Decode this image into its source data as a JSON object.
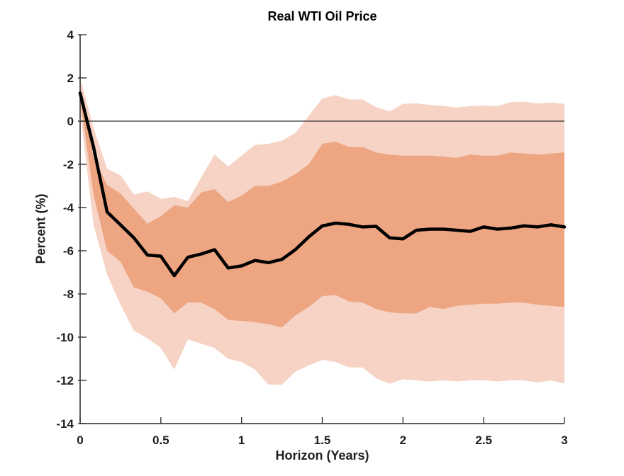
{
  "chart_data": {
    "type": "line",
    "title": "Real WTI Oil Price",
    "xlabel": "Horizon (Years)",
    "ylabel": "Percent (%)",
    "xlim": [
      0,
      3
    ],
    "ylim": [
      -14,
      4
    ],
    "grid": false,
    "legend": null,
    "xticks": [
      0,
      0.5,
      1,
      1.5,
      2,
      2.5,
      3
    ],
    "xtick_labels": [
      "0",
      "0.5",
      "1",
      "1.5",
      "2",
      "2.5",
      "3"
    ],
    "yticks": [
      4,
      2,
      0,
      -2,
      -4,
      -6,
      -8,
      -10,
      -12,
      -14
    ],
    "ytick_labels": [
      "4",
      "2",
      "0",
      "-2",
      "-4",
      "-6",
      "-8",
      "-10",
      "-12",
      "-14"
    ],
    "colors": {
      "outer_band": "#F6D3C4",
      "inner_band": "#EDA582",
      "line": "#000000",
      "axis": "#262626",
      "zero_line": "#333333",
      "text": "#1f1f1f"
    },
    "x": [
      0,
      0.083,
      0.167,
      0.25,
      0.333,
      0.417,
      0.5,
      0.583,
      0.667,
      0.75,
      0.833,
      0.917,
      1,
      1.083,
      1.167,
      1.25,
      1.333,
      1.417,
      1.5,
      1.583,
      1.667,
      1.75,
      1.833,
      1.917,
      2,
      2.083,
      2.167,
      2.25,
      2.333,
      2.417,
      2.5,
      2.583,
      2.667,
      2.75,
      2.833,
      2.917,
      3
    ],
    "series": [
      {
        "name": "outer-confidence-band",
        "type": "band",
        "upper": [
          2.0,
          -0.3,
          -2.2,
          -2.5,
          -3.4,
          -3.25,
          -3.6,
          -3.5,
          -3.7,
          -2.6,
          -1.55,
          -2.1,
          -1.6,
          -1.1,
          -1.05,
          -0.9,
          -0.55,
          0.25,
          1.05,
          1.2,
          1.0,
          1.0,
          0.65,
          0.45,
          0.8,
          0.82,
          0.75,
          0.7,
          0.63,
          0.7,
          0.72,
          0.69,
          0.88,
          0.9,
          0.82,
          0.86,
          0.8
        ],
        "lower": [
          0.5,
          -4.8,
          -7.1,
          -8.5,
          -9.7,
          -10.05,
          -10.5,
          -11.5,
          -10.1,
          -10.3,
          -10.5,
          -11.0,
          -11.15,
          -11.5,
          -12.2,
          -12.2,
          -11.6,
          -11.3,
          -11.05,
          -11.15,
          -11.4,
          -11.4,
          -11.9,
          -12.15,
          -11.95,
          -12.0,
          -12.05,
          -12.0,
          -12.05,
          -12.0,
          -12.0,
          -12.05,
          -12.0,
          -12.0,
          -12.1,
          -12.0,
          -12.15
        ]
      },
      {
        "name": "inner-confidence-band",
        "type": "band",
        "upper": [
          1.6,
          -1.7,
          -2.95,
          -3.35,
          -4.05,
          -4.75,
          -4.4,
          -3.9,
          -4.0,
          -3.3,
          -3.15,
          -3.75,
          -3.45,
          -3.0,
          -3.0,
          -2.8,
          -2.45,
          -2.0,
          -1.05,
          -0.95,
          -1.2,
          -1.2,
          -1.45,
          -1.55,
          -1.6,
          -1.6,
          -1.6,
          -1.65,
          -1.7,
          -1.55,
          -1.6,
          -1.6,
          -1.45,
          -1.5,
          -1.55,
          -1.5,
          -1.45
        ],
        "lower": [
          1.05,
          -3.4,
          -6.0,
          -6.5,
          -7.7,
          -7.9,
          -8.2,
          -8.9,
          -8.4,
          -8.4,
          -8.7,
          -9.2,
          -9.25,
          -9.3,
          -9.4,
          -9.55,
          -9.0,
          -8.6,
          -8.1,
          -8.05,
          -8.35,
          -8.4,
          -8.7,
          -8.85,
          -8.9,
          -8.9,
          -8.6,
          -8.7,
          -8.55,
          -8.5,
          -8.45,
          -8.45,
          -8.4,
          -8.4,
          -8.5,
          -8.55,
          -8.6
        ]
      },
      {
        "name": "point-estimate",
        "type": "line",
        "values": [
          1.3,
          -1.2,
          -4.2,
          -4.8,
          -5.4,
          -6.2,
          -6.25,
          -7.15,
          -6.3,
          -6.15,
          -5.95,
          -6.8,
          -6.7,
          -6.45,
          -6.55,
          -6.4,
          -5.95,
          -5.35,
          -4.85,
          -4.72,
          -4.78,
          -4.9,
          -4.87,
          -5.4,
          -5.45,
          -5.05,
          -5.0,
          -5.0,
          -5.05,
          -5.1,
          -4.9,
          -5.0,
          -4.95,
          -4.85,
          -4.9,
          -4.8,
          -4.9
        ]
      }
    ]
  }
}
